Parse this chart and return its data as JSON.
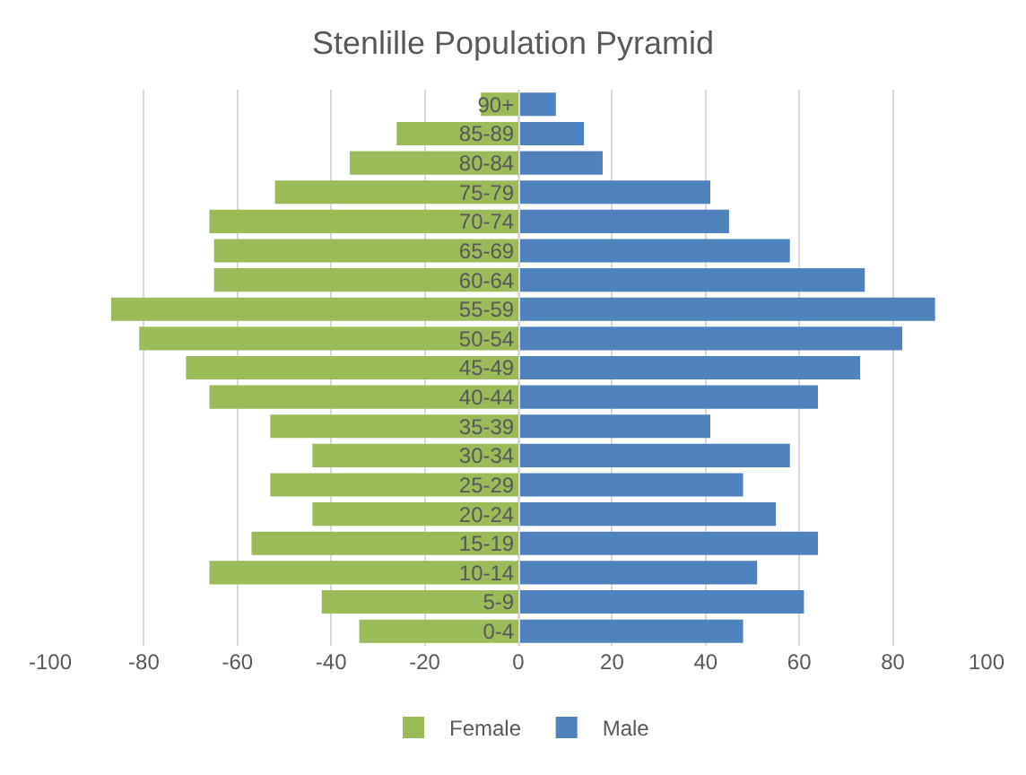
{
  "chart_data": {
    "type": "bar",
    "orientation": "horizontal",
    "stacked": true,
    "title": "Stenlille Population Pyramid",
    "categories": [
      "90+",
      "85-89",
      "80-84",
      "75-79",
      "70-74",
      "65-69",
      "60-64",
      "55-59",
      "50-54",
      "45-49",
      "40-44",
      "35-39",
      "30-34",
      "25-29",
      "20-24",
      "15-19",
      "10-14",
      "5-9",
      "0-4"
    ],
    "series": [
      {
        "name": "Female",
        "color": "#9bbb59",
        "values": [
          -8,
          -26,
          -36,
          -52,
          -66,
          -65,
          -65,
          -87,
          -81,
          -71,
          -66,
          -53,
          -44,
          -53,
          -44,
          -57,
          -66,
          -42,
          -34
        ]
      },
      {
        "name": "Male",
        "color": "#4f81bd",
        "values": [
          8,
          14,
          18,
          41,
          45,
          58,
          74,
          89,
          82,
          73,
          64,
          41,
          58,
          48,
          55,
          64,
          51,
          61,
          48
        ]
      }
    ],
    "xlim": [
      -100,
      100
    ],
    "xticks": [
      -100,
      -80,
      -60,
      -40,
      -20,
      0,
      20,
      40,
      60,
      80,
      100
    ],
    "grid": "x",
    "legend": "bottom"
  }
}
